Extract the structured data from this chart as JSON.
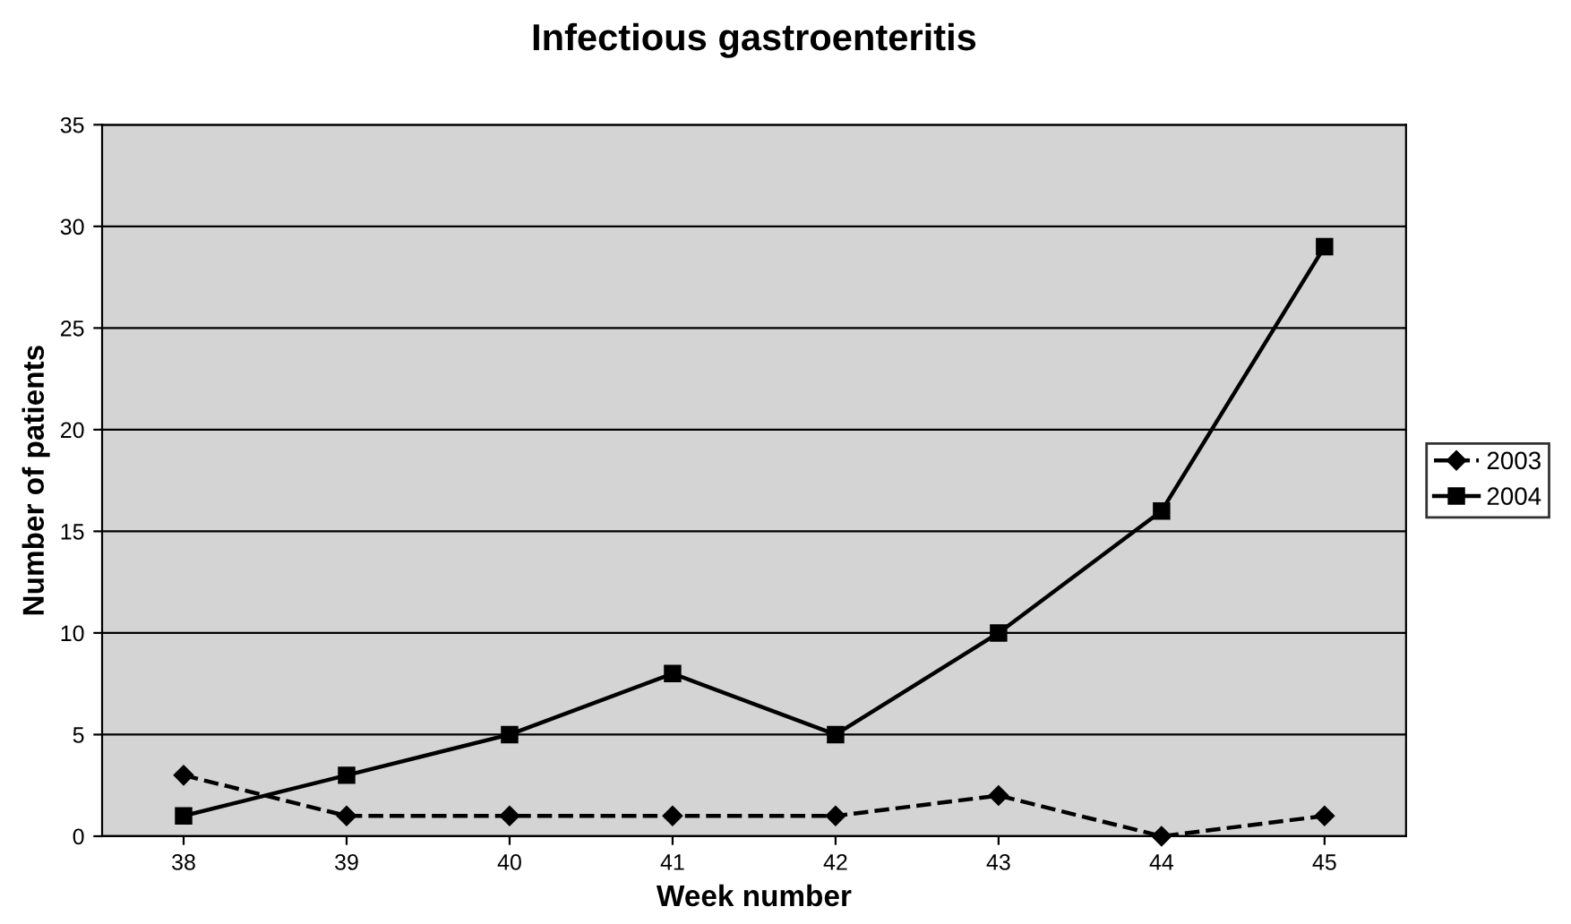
{
  "chart_data": {
    "type": "line",
    "title": "Infectious gastroenteritis",
    "xlabel": "Week number",
    "ylabel": "Number of patients",
    "categories": [
      "38",
      "39",
      "40",
      "41",
      "42",
      "43",
      "44",
      "45"
    ],
    "series": [
      {
        "name": "2003",
        "color": "#000000",
        "marker": "diamond",
        "line_style": "dashed",
        "values": [
          3,
          1,
          1,
          1,
          1,
          2,
          0,
          1
        ]
      },
      {
        "name": "2004",
        "color": "#000000",
        "marker": "square",
        "line_style": "solid",
        "values": [
          1,
          3,
          5,
          8,
          5,
          10,
          16,
          29
        ]
      }
    ],
    "ylim": [
      0,
      35
    ],
    "yticks": [
      0,
      5,
      10,
      15,
      20,
      25,
      30,
      35
    ],
    "grid": "y",
    "legend": "right"
  }
}
